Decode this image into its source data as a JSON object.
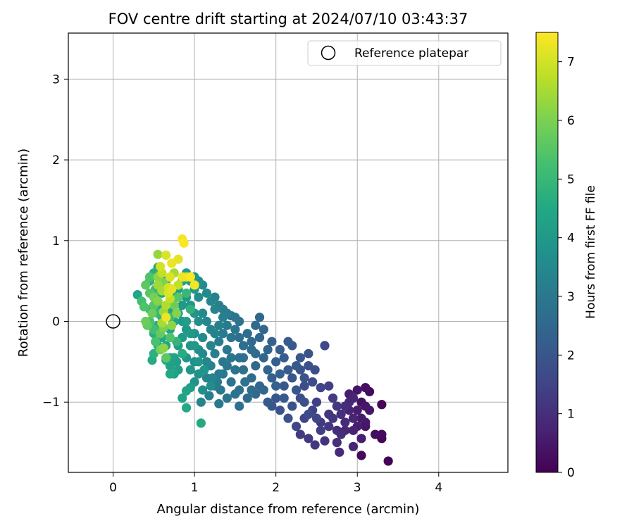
{
  "chart_data": {
    "type": "scatter",
    "title": "FOV centre drift starting at 2024/07/10 03:43:37",
    "xlabel": "Angular distance from reference (arcmin)",
    "ylabel": "Rotation from reference (arcmin)",
    "xlim": [
      -0.55,
      4.85
    ],
    "ylim": [
      -1.87,
      3.57
    ],
    "x_ticks": [
      0,
      1,
      2,
      3,
      4
    ],
    "x_tick_labels": [
      "0",
      "1",
      "2",
      "3",
      "4"
    ],
    "y_ticks": [
      -1,
      0,
      1,
      2,
      3
    ],
    "y_tick_labels": [
      "−1",
      "0",
      "1",
      "2",
      "3"
    ],
    "grid": true,
    "legend": {
      "location": "top-right",
      "entries": [
        "Reference platepar"
      ]
    },
    "reference_point": {
      "x": 0,
      "y": 0,
      "label": "Reference platepar"
    },
    "colorbar": {
      "label": "Hours from first FF file",
      "colormap": "viridis",
      "range": [
        0,
        7.5
      ],
      "ticks": [
        0,
        1,
        2,
        3,
        4,
        5,
        6,
        7
      ],
      "tick_labels": [
        "0",
        "1",
        "2",
        "3",
        "4",
        "5",
        "6",
        "7"
      ]
    },
    "points": [
      [
        3.38,
        -1.73,
        0.05
      ],
      [
        3.05,
        -1.66,
        0.15
      ],
      [
        3.3,
        -1.45,
        0.1
      ],
      [
        3.3,
        -1.4,
        0.2
      ],
      [
        3.22,
        -1.4,
        0.25
      ],
      [
        3.3,
        -1.03,
        0.1
      ],
      [
        3.15,
        -0.87,
        0.2
      ],
      [
        3.1,
        -0.82,
        0.3
      ],
      [
        3.0,
        -0.85,
        0.4
      ],
      [
        2.9,
        -0.9,
        0.6
      ],
      [
        3.05,
        -1.0,
        0.35
      ],
      [
        3.1,
        -1.05,
        0.45
      ],
      [
        3.15,
        -1.1,
        0.5
      ],
      [
        3.05,
        -1.2,
        0.55
      ],
      [
        3.0,
        -1.3,
        0.6
      ],
      [
        2.95,
        -1.35,
        0.7
      ],
      [
        3.1,
        -1.25,
        0.5
      ],
      [
        2.9,
        -1.1,
        0.75
      ],
      [
        2.95,
        -1.2,
        0.8
      ],
      [
        2.85,
        -1.25,
        0.9
      ],
      [
        2.8,
        -1.4,
        0.95
      ],
      [
        2.75,
        -1.5,
        1.0
      ],
      [
        2.6,
        -1.48,
        1.1
      ],
      [
        2.48,
        -1.53,
        1.2
      ],
      [
        2.4,
        -1.45,
        1.25
      ],
      [
        2.3,
        -1.4,
        1.3
      ],
      [
        2.78,
        -1.62,
        0.9
      ],
      [
        2.95,
        -1.55,
        0.8
      ],
      [
        3.05,
        -1.45,
        0.65
      ],
      [
        3.1,
        -1.3,
        0.4
      ],
      [
        2.65,
        -0.8,
        1.4
      ],
      [
        2.55,
        -0.82,
        1.5
      ],
      [
        2.7,
        -0.95,
        1.3
      ],
      [
        2.75,
        -1.05,
        1.2
      ],
      [
        2.65,
        -1.15,
        1.15
      ],
      [
        2.55,
        -1.25,
        1.25
      ],
      [
        2.5,
        -1.0,
        1.4
      ],
      [
        2.45,
        -1.1,
        1.45
      ],
      [
        2.35,
        -1.2,
        1.5
      ],
      [
        2.25,
        -1.3,
        1.55
      ],
      [
        2.6,
        -0.3,
        1.6
      ],
      [
        2.45,
        -0.75,
        1.7
      ],
      [
        2.35,
        -0.8,
        1.75
      ],
      [
        2.3,
        -0.95,
        1.8
      ],
      [
        2.2,
        -1.05,
        1.85
      ],
      [
        2.15,
        -1.2,
        1.9
      ],
      [
        2.05,
        -1.1,
        1.95
      ],
      [
        2.0,
        -0.95,
        2.0
      ],
      [
        1.95,
        -1.05,
        2.05
      ],
      [
        1.9,
        -1.0,
        2.1
      ],
      [
        2.1,
        -0.8,
        2.05
      ],
      [
        2.2,
        -0.7,
        2.0
      ],
      [
        2.3,
        -0.6,
        1.95
      ],
      [
        2.4,
        -0.55,
        1.85
      ],
      [
        2.48,
        -0.6,
        1.8
      ],
      [
        2.4,
        -0.4,
        1.9
      ],
      [
        2.3,
        -0.45,
        2.0
      ],
      [
        2.2,
        -0.3,
        2.1
      ],
      [
        2.15,
        -0.25,
        2.15
      ],
      [
        2.05,
        -0.35,
        2.2
      ],
      [
        2.0,
        -0.5,
        2.25
      ],
      [
        2.05,
        -0.65,
        2.3
      ],
      [
        1.95,
        -0.7,
        2.35
      ],
      [
        1.9,
        -0.6,
        2.4
      ],
      [
        1.85,
        -0.45,
        2.45
      ],
      [
        1.9,
        -0.35,
        2.4
      ],
      [
        1.95,
        -0.25,
        2.35
      ],
      [
        2.1,
        -0.45,
        2.2
      ],
      [
        2.25,
        -0.55,
        2.1
      ],
      [
        2.35,
        -0.7,
        1.9
      ],
      [
        1.8,
        -0.8,
        2.5
      ],
      [
        1.75,
        -0.9,
        2.55
      ],
      [
        1.65,
        -0.95,
        2.6
      ],
      [
        1.55,
        -1.05,
        2.7
      ],
      [
        1.55,
        -0.85,
        2.75
      ],
      [
        1.7,
        -0.7,
        2.6
      ],
      [
        1.75,
        -0.55,
        2.55
      ],
      [
        1.7,
        -0.35,
        2.6
      ],
      [
        1.8,
        -0.2,
        2.5
      ],
      [
        1.85,
        -0.1,
        2.45
      ],
      [
        1.8,
        0.05,
        2.5
      ],
      [
        1.75,
        -0.05,
        2.55
      ],
      [
        1.65,
        -0.15,
        2.65
      ],
      [
        1.6,
        -0.3,
        2.7
      ],
      [
        1.55,
        -0.45,
        2.8
      ],
      [
        1.5,
        -0.6,
        2.85
      ],
      [
        1.45,
        -0.75,
        2.9
      ],
      [
        1.5,
        -0.9,
        2.85
      ],
      [
        1.4,
        -0.95,
        2.95
      ],
      [
        1.3,
        -1.02,
        3.0
      ],
      [
        1.25,
        -0.8,
        3.1
      ],
      [
        1.3,
        -0.65,
        3.05
      ],
      [
        1.35,
        -0.5,
        3.0
      ],
      [
        1.4,
        -0.35,
        3.0
      ],
      [
        1.45,
        -0.2,
        2.95
      ],
      [
        1.5,
        -0.1,
        2.9
      ],
      [
        1.55,
        0.0,
        2.85
      ],
      [
        1.5,
        0.05,
        2.9
      ],
      [
        1.45,
        0.07,
        2.95
      ],
      [
        1.4,
        -0.05,
        3.05
      ],
      [
        1.35,
        -0.15,
        3.1
      ],
      [
        1.3,
        -0.25,
        3.15
      ],
      [
        1.25,
        -0.4,
        3.2
      ],
      [
        1.2,
        -0.55,
        3.25
      ],
      [
        1.15,
        -0.7,
        3.3
      ],
      [
        1.2,
        -0.3,
        3.35
      ],
      [
        1.25,
        -0.15,
        3.3
      ],
      [
        1.3,
        -0.05,
        3.25
      ],
      [
        1.35,
        0.05,
        3.2
      ],
      [
        1.25,
        0.15,
        3.35
      ],
      [
        1.2,
        0.25,
        3.45
      ],
      [
        1.15,
        0.35,
        3.5
      ],
      [
        1.1,
        0.45,
        3.55
      ],
      [
        1.05,
        0.3,
        3.6
      ],
      [
        1.1,
        0.1,
        3.5
      ],
      [
        1.15,
        0.0,
        3.45
      ],
      [
        1.2,
        -0.1,
        3.4
      ],
      [
        1.1,
        -0.2,
        3.55
      ],
      [
        1.05,
        -0.35,
        3.65
      ],
      [
        1.0,
        -0.5,
        3.7
      ],
      [
        1.05,
        -0.65,
        3.75
      ],
      [
        1.1,
        -0.85,
        3.7
      ],
      [
        1.0,
        -0.75,
        3.8
      ],
      [
        0.95,
        -0.6,
        3.85
      ],
      [
        0.9,
        -0.45,
        3.9
      ],
      [
        0.95,
        -0.3,
        3.85
      ],
      [
        1.0,
        -0.15,
        3.8
      ],
      [
        1.05,
        0.0,
        3.7
      ],
      [
        1.0,
        0.1,
        3.85
      ],
      [
        0.95,
        0.2,
        3.9
      ],
      [
        0.9,
        0.3,
        3.95
      ],
      [
        0.85,
        0.2,
        4.0
      ],
      [
        0.8,
        0.1,
        4.05
      ],
      [
        0.85,
        0.0,
        4.0
      ],
      [
        0.9,
        -0.1,
        3.95
      ],
      [
        0.85,
        -0.2,
        4.05
      ],
      [
        0.8,
        -0.3,
        4.1
      ],
      [
        0.75,
        -0.45,
        4.2
      ],
      [
        0.7,
        -0.55,
        4.25
      ],
      [
        0.8,
        -0.6,
        4.15
      ],
      [
        0.75,
        -0.65,
        4.3
      ],
      [
        0.7,
        -0.45,
        4.35
      ],
      [
        0.65,
        -0.3,
        4.4
      ],
      [
        0.6,
        -0.2,
        4.5
      ],
      [
        0.7,
        -0.1,
        4.4
      ],
      [
        0.75,
        0.0,
        4.3
      ],
      [
        0.7,
        0.15,
        4.35
      ],
      [
        0.75,
        0.3,
        4.25
      ],
      [
        0.8,
        0.4,
        4.2
      ],
      [
        0.85,
        0.5,
        4.15
      ],
      [
        0.9,
        0.6,
        4.1
      ],
      [
        0.95,
        0.5,
        4.0
      ],
      [
        1.0,
        0.4,
        3.9
      ],
      [
        1.05,
        0.5,
        3.7
      ],
      [
        0.65,
        0.5,
        4.45
      ],
      [
        0.6,
        0.35,
        4.55
      ],
      [
        0.55,
        0.2,
        4.6
      ],
      [
        0.6,
        0.05,
        4.55
      ],
      [
        0.55,
        -0.05,
        4.65
      ],
      [
        0.5,
        -0.15,
        4.7
      ],
      [
        0.55,
        -0.3,
        4.7
      ],
      [
        0.5,
        -0.4,
        4.75
      ],
      [
        0.48,
        -0.48,
        4.6
      ],
      [
        0.65,
        -0.48,
        4.5
      ],
      [
        0.55,
        0.67,
        4.6
      ],
      [
        0.5,
        0.6,
        4.65
      ],
      [
        0.45,
        0.5,
        4.8
      ],
      [
        0.9,
        -0.86,
        4.3
      ],
      [
        0.95,
        -0.82,
        4.1
      ],
      [
        0.85,
        -0.95,
        4.35
      ],
      [
        0.9,
        -1.07,
        4.5
      ],
      [
        1.08,
        -1.26,
        4.55
      ],
      [
        1.2,
        -0.8,
        3.6
      ],
      [
        0.7,
        -0.65,
        4.5
      ],
      [
        0.78,
        -0.5,
        4.2
      ],
      [
        1.25,
        0.3,
        3.3
      ],
      [
        1.3,
        0.2,
        3.2
      ],
      [
        1.35,
        0.15,
        3.15
      ],
      [
        1.4,
        0.1,
        3.1
      ],
      [
        1.0,
        0.55,
        3.9
      ],
      [
        1.1,
        -0.4,
        3.5
      ],
      [
        1.15,
        -0.5,
        3.45
      ],
      [
        0.9,
        0.0,
        4.15
      ],
      [
        0.95,
        -0.15,
        4.05
      ],
      [
        1.0,
        -0.3,
        4.0
      ],
      [
        1.05,
        -0.5,
        3.95
      ],
      [
        1.12,
        -0.6,
        3.85
      ],
      [
        1.22,
        -0.7,
        3.4
      ],
      [
        1.32,
        -0.85,
        3.0
      ],
      [
        1.6,
        -0.6,
        2.8
      ],
      [
        1.62,
        -0.75,
        2.75
      ],
      [
        1.7,
        -0.85,
        2.65
      ],
      [
        1.85,
        -0.85,
        2.45
      ],
      [
        2.0,
        -0.8,
        2.3
      ],
      [
        2.1,
        -0.95,
        2.15
      ],
      [
        2.15,
        -0.6,
        2.15
      ],
      [
        2.25,
        -0.85,
        2.0
      ],
      [
        2.35,
        -1.0,
        1.85
      ],
      [
        2.4,
        -1.15,
        1.7
      ],
      [
        2.5,
        -1.2,
        1.55
      ],
      [
        2.55,
        -1.35,
        1.35
      ],
      [
        2.65,
        -1.3,
        1.25
      ],
      [
        2.7,
        -1.2,
        1.2
      ],
      [
        2.8,
        -1.15,
        1.0
      ],
      [
        2.85,
        -1.05,
        0.95
      ],
      [
        2.9,
        -1.0,
        0.85
      ],
      [
        2.95,
        -0.95,
        0.75
      ],
      [
        3.0,
        -1.1,
        0.6
      ],
      [
        2.85,
        -1.35,
        0.85
      ],
      [
        2.75,
        -1.35,
        0.95
      ],
      [
        1.7,
        -0.25,
        2.6
      ],
      [
        1.75,
        -0.4,
        2.55
      ],
      [
        1.55,
        -0.2,
        2.75
      ],
      [
        1.6,
        -0.45,
        2.75
      ],
      [
        1.45,
        -0.45,
        2.9
      ],
      [
        1.4,
        -0.55,
        2.95
      ],
      [
        1.35,
        -0.65,
        3.0
      ],
      [
        1.28,
        -0.75,
        3.1
      ],
      [
        1.18,
        -0.92,
        3.2
      ],
      [
        1.08,
        -1.0,
        3.4
      ],
      [
        0.3,
        0.33,
        4.4
      ],
      [
        0.35,
        0.25,
        5.2
      ],
      [
        0.4,
        0.45,
        5.6
      ],
      [
        0.38,
        0.18,
        5.4
      ],
      [
        0.4,
        0.0,
        5.8
      ],
      [
        0.42,
        -0.05,
        5.7
      ],
      [
        0.45,
        0.35,
        5.5
      ],
      [
        0.5,
        0.3,
        5.9
      ],
      [
        0.55,
        0.25,
        6.1
      ],
      [
        0.48,
        0.1,
        5.8
      ],
      [
        0.52,
        -0.25,
        5.3
      ],
      [
        0.58,
        -0.15,
        5.7
      ],
      [
        0.62,
        -0.08,
        6.0
      ],
      [
        0.58,
        -0.35,
        5.9
      ],
      [
        0.62,
        0.12,
        6.4
      ],
      [
        0.65,
        0.2,
        6.6
      ],
      [
        0.7,
        0.28,
        6.8
      ],
      [
        0.72,
        0.4,
        7.2
      ],
      [
        0.68,
        0.42,
        7.0
      ],
      [
        0.55,
        0.55,
        6.2
      ],
      [
        0.6,
        0.6,
        6.8
      ],
      [
        0.55,
        0.83,
        6.3
      ],
      [
        0.65,
        0.82,
        7.1
      ],
      [
        0.72,
        0.72,
        7.3
      ],
      [
        0.58,
        0.68,
        7.0
      ],
      [
        0.85,
        1.02,
        7.4
      ],
      [
        0.87,
        0.97,
        7.45
      ],
      [
        0.8,
        0.77,
        7.2
      ],
      [
        0.85,
        0.55,
        7.3
      ],
      [
        0.95,
        0.55,
        7.5
      ],
      [
        1.0,
        0.45,
        7.4
      ],
      [
        0.9,
        0.55,
        6.9
      ],
      [
        0.7,
        0.55,
        7.1
      ],
      [
        0.65,
        0.05,
        7.3
      ],
      [
        0.6,
        -0.02,
        6.5
      ],
      [
        0.55,
        0.45,
        6.4
      ],
      [
        0.45,
        0.55,
        5.4
      ],
      [
        0.5,
        0.2,
        5.5
      ],
      [
        0.68,
        0.35,
        7.1
      ],
      [
        0.75,
        0.6,
        6.5
      ],
      [
        0.6,
        0.38,
        6.5
      ],
      [
        0.62,
        0.48,
        6.0
      ],
      [
        0.75,
        0.2,
        5.8
      ],
      [
        0.8,
        0.3,
        5.5
      ],
      [
        0.7,
        -0.2,
        5.4
      ],
      [
        0.5,
        -0.1,
        5.2
      ],
      [
        0.55,
        0.1,
        5.0
      ],
      [
        0.45,
        0.0,
        5.3
      ],
      [
        0.65,
        -0.45,
        5.6
      ],
      [
        0.62,
        -0.33,
        6.2
      ],
      [
        0.45,
        0.15,
        5.0
      ],
      [
        0.52,
        0.4,
        5.1
      ],
      [
        0.78,
        0.1,
        6.1
      ],
      [
        0.72,
        -0.05,
        6.2
      ],
      [
        0.8,
        0.45,
        6.8
      ],
      [
        0.9,
        0.35,
        5.0
      ],
      [
        0.95,
        0.15,
        4.8
      ],
      [
        0.85,
        -0.4,
        4.6
      ],
      [
        0.78,
        -0.25,
        4.9
      ],
      [
        0.7,
        0.05,
        5.1
      ]
    ]
  }
}
